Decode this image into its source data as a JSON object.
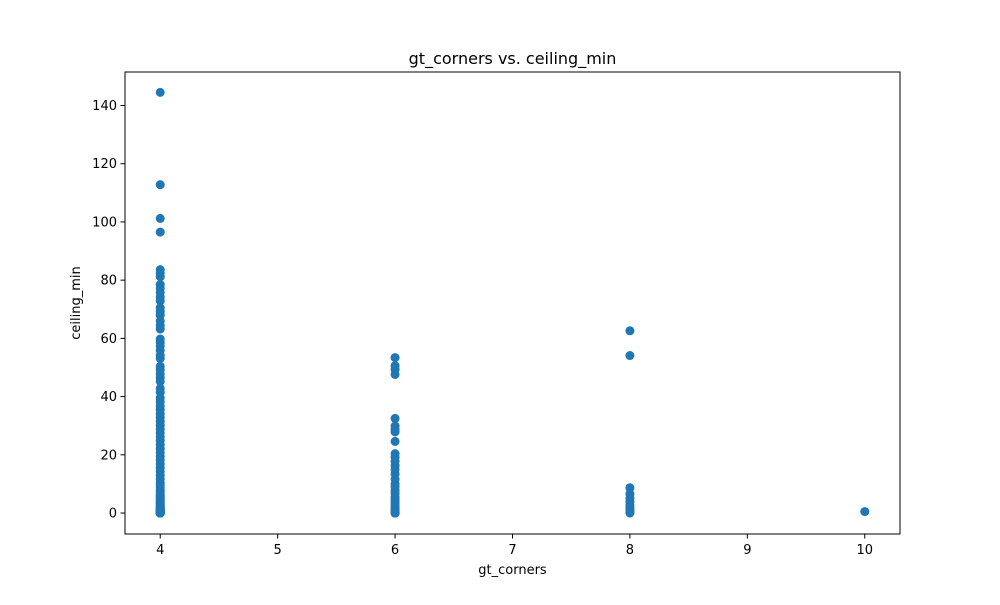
{
  "chart_data": {
    "type": "scatter",
    "title": "gt_corners vs. ceiling_min",
    "xlabel": "gt_corners",
    "ylabel": "ceiling_min",
    "xlim": [
      3.7,
      10.3
    ],
    "ylim": [
      -7.2,
      151.5
    ],
    "xticks": [
      4,
      5,
      6,
      7,
      8,
      9,
      10
    ],
    "yticks": [
      0,
      20,
      40,
      60,
      80,
      100,
      120,
      140
    ],
    "grid": false,
    "legend": "none",
    "marker_color": "#1f77b4",
    "series": [
      {
        "x": [
          4,
          4,
          4,
          4,
          4,
          4,
          4,
          4,
          4,
          4,
          4,
          4,
          4,
          4,
          4,
          4,
          4,
          4,
          4,
          4,
          4,
          4,
          4,
          4,
          4,
          4,
          4,
          4,
          4,
          4,
          4,
          4,
          4,
          4,
          4,
          4,
          4,
          4,
          4,
          4,
          4,
          4,
          4,
          4,
          4,
          4,
          4,
          4,
          4,
          4,
          4,
          4,
          4,
          4,
          4,
          4,
          4,
          4,
          4,
          4,
          4,
          4,
          4,
          4,
          4,
          4,
          4,
          4,
          4,
          4,
          4,
          4,
          4,
          4,
          4,
          4,
          4,
          4,
          4,
          4,
          4,
          4,
          4,
          4,
          4,
          4,
          4,
          4,
          4,
          4,
          4,
          4,
          4,
          4,
          4,
          4,
          4,
          4,
          4,
          4,
          4,
          4,
          4,
          4,
          4,
          4,
          4,
          4,
          4,
          4,
          4,
          4,
          4,
          4,
          4,
          4,
          4,
          4,
          4,
          4,
          6,
          6,
          6,
          6,
          6,
          6,
          6,
          6,
          6,
          6,
          6,
          6,
          6,
          6,
          6,
          6,
          6,
          6,
          6,
          6,
          6,
          6,
          6,
          6,
          6,
          6,
          6,
          6,
          6,
          6,
          6,
          6,
          6,
          6,
          6,
          6,
          6,
          6,
          8,
          8,
          8,
          8,
          8,
          8,
          8,
          8,
          8,
          8,
          8,
          8,
          10
        ],
        "y": [
          144.5,
          112.8,
          101.2,
          96.5,
          83.6,
          82.5,
          81.2,
          78.5,
          77.2,
          75.8,
          74.2,
          72.9,
          70.5,
          69.2,
          68.0,
          66.0,
          64.5,
          63.2,
          59.8,
          58.6,
          57.4,
          55.9,
          54.2,
          53.1,
          50.4,
          49.2,
          47.8,
          46.5,
          45.2,
          42.8,
          41.5,
          39.6,
          38.2,
          36.8,
          35.5,
          34.1,
          32.8,
          31.5,
          30.2,
          28.8,
          27.5,
          26.2,
          24.9,
          23.5,
          22.1,
          20.8,
          19.5,
          18.2,
          16.9,
          15.6,
          14.3,
          13.0,
          11.7,
          10.5,
          9.6,
          8.8,
          8.1,
          7.5,
          6.9,
          6.3,
          5.8,
          5.3,
          4.8,
          4.4,
          4.0,
          3.6,
          3.2,
          2.9,
          2.6,
          2.3,
          2.0,
          1.8,
          1.6,
          1.4,
          1.2,
          1.0,
          0.9,
          0.8,
          0.7,
          0.6,
          0.5,
          0.4,
          0.3,
          0.25,
          0.2,
          0.15,
          0.1,
          0.05,
          0.0,
          0.0,
          0.0,
          0.0,
          0.0,
          0.0,
          0.0,
          0.0,
          0.0,
          0.0,
          0.0,
          0.0,
          0.0,
          0.0,
          0.0,
          0.0,
          0.0,
          0.0,
          0.0,
          0.0,
          0.0,
          0.0,
          0.0,
          0.0,
          0.0,
          0.0,
          0.0,
          0.0,
          0.0,
          0.0,
          0.0,
          0.0,
          53.4,
          50.6,
          49.3,
          47.6,
          32.5,
          29.9,
          28.8,
          27.9,
          24.6,
          20.4,
          19.2,
          17.8,
          16.3,
          15.0,
          13.4,
          11.6,
          10.0,
          9.0,
          7.8,
          6.8,
          5.7,
          4.8,
          3.9,
          3.1,
          2.4,
          1.8,
          1.2,
          0.8,
          0.4,
          0.2,
          0.0,
          0.0,
          0.0,
          0.0,
          0.0,
          0.0,
          0.0,
          0.0,
          62.6,
          54.1,
          8.7,
          6.6,
          5.1,
          3.9,
          2.8,
          1.9,
          1.1,
          0.5,
          0.2,
          0.0,
          0.5
        ]
      }
    ]
  }
}
